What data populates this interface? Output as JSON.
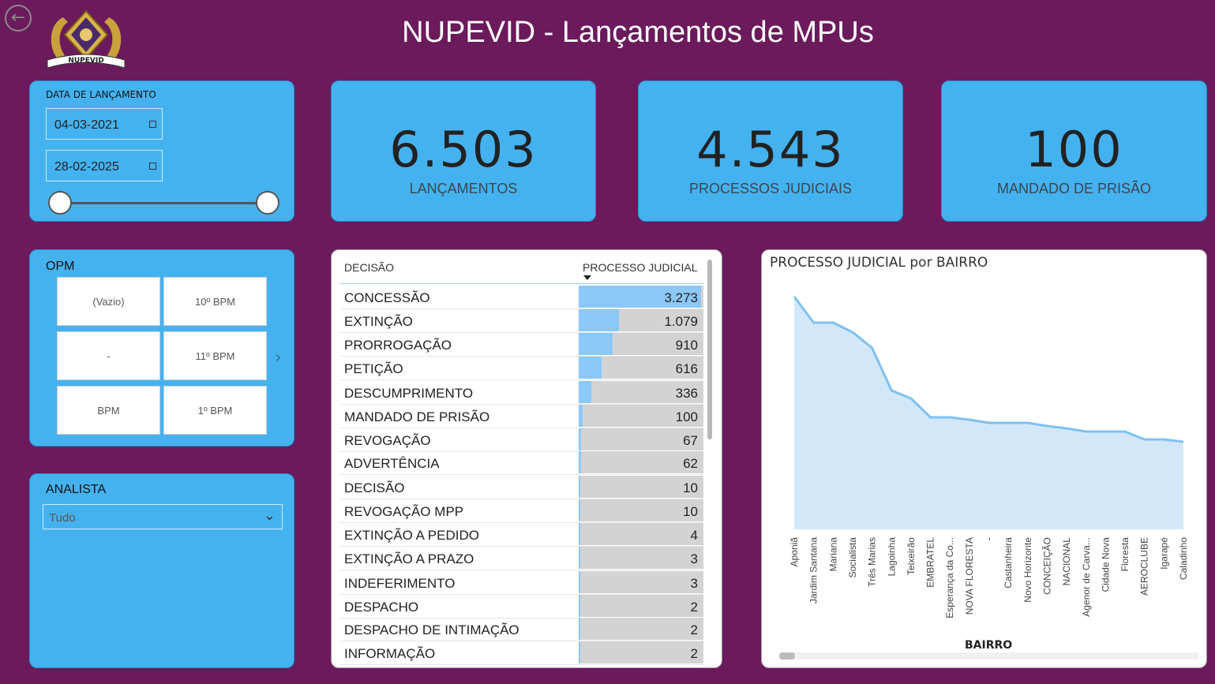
{
  "header": {
    "title": "NUPEVID - Lançamentos de MPUs",
    "logo_text": "NUPEVID"
  },
  "date_filter": {
    "title": "DATA DE LANÇAMENTO",
    "start": "04-03-2021",
    "end": "28-02-2025"
  },
  "kpis": [
    {
      "value": "6.503",
      "label": "LANÇAMENTOS"
    },
    {
      "value": "4.543",
      "label": "PROCESSOS JUDICIAIS"
    },
    {
      "value": "100",
      "label": "MANDADO DE PRISÃO"
    }
  ],
  "opm": {
    "title": "OPM",
    "tiles": [
      "(Vazio)",
      "10º BPM",
      "-",
      "11º BPM",
      "BPM",
      "1º BPM"
    ]
  },
  "analista": {
    "title": "ANALISTA",
    "selected": "Tudo"
  },
  "table": {
    "col_decisao": "DECISÃO",
    "col_processo": "PROCESSO JUDICIAL",
    "rows": [
      {
        "name": "CONCESSÃO",
        "display": "3.273",
        "value": 3273
      },
      {
        "name": "EXTINÇÃO",
        "display": "1.079",
        "value": 1079
      },
      {
        "name": "PRORROGAÇÃO",
        "display": "910",
        "value": 910
      },
      {
        "name": "PETIÇÃO",
        "display": "616",
        "value": 616
      },
      {
        "name": "DESCUMPRIMENTO",
        "display": "336",
        "value": 336
      },
      {
        "name": "MANDADO DE PRISÃO",
        "display": "100",
        "value": 100
      },
      {
        "name": "REVOGAÇÃO",
        "display": "67",
        "value": 67
      },
      {
        "name": "ADVERTÊNCIA",
        "display": "62",
        "value": 62
      },
      {
        "name": "DECISÃO",
        "display": "10",
        "value": 10
      },
      {
        "name": "REVOGAÇÃO MPP",
        "display": "10",
        "value": 10
      },
      {
        "name": "EXTINÇÃO A PEDIDO",
        "display": "4",
        "value": 4
      },
      {
        "name": "EXTINÇÃO A PRAZO",
        "display": "3",
        "value": 3
      },
      {
        "name": "INDEFERIMENTO",
        "display": "3",
        "value": 3
      },
      {
        "name": "DESPACHO",
        "display": "2",
        "value": 2
      },
      {
        "name": "DESPACHO DE INTIMAÇÃO",
        "display": "2",
        "value": 2
      },
      {
        "name": "INFORMAÇÃO",
        "display": "2",
        "value": 2
      }
    ]
  },
  "chart_data": {
    "type": "area",
    "title": "PROCESSO JUDICIAL por BAIRRO",
    "xlabel": "BAIRRO",
    "ylabel": "",
    "grid": false,
    "categories": [
      "Aponiã",
      "Jardim Santana",
      "Mariana",
      "Socialista",
      "Três Marias",
      "Lagoinha",
      "Teixeirão",
      "EMBRATEL",
      "Esperança da Co...",
      "NOVA FLORESTA",
      "-",
      "Castanheira",
      "Novo Horizonte",
      "CONCEIÇÃO",
      "NACIONAL",
      "Agenor de Carva...",
      "Cidade Nova",
      "Floresta",
      "AEROCLUBE",
      "Igarapé",
      "Caladinho"
    ],
    "values": [
      295,
      262,
      262,
      250,
      230,
      176,
      166,
      142,
      142,
      139,
      135,
      135,
      135,
      131,
      128,
      124,
      124,
      124,
      114,
      114,
      111
    ],
    "ylim": [
      0,
      300
    ],
    "color": "#7fc0f2",
    "fill": "#d2e8f9"
  }
}
